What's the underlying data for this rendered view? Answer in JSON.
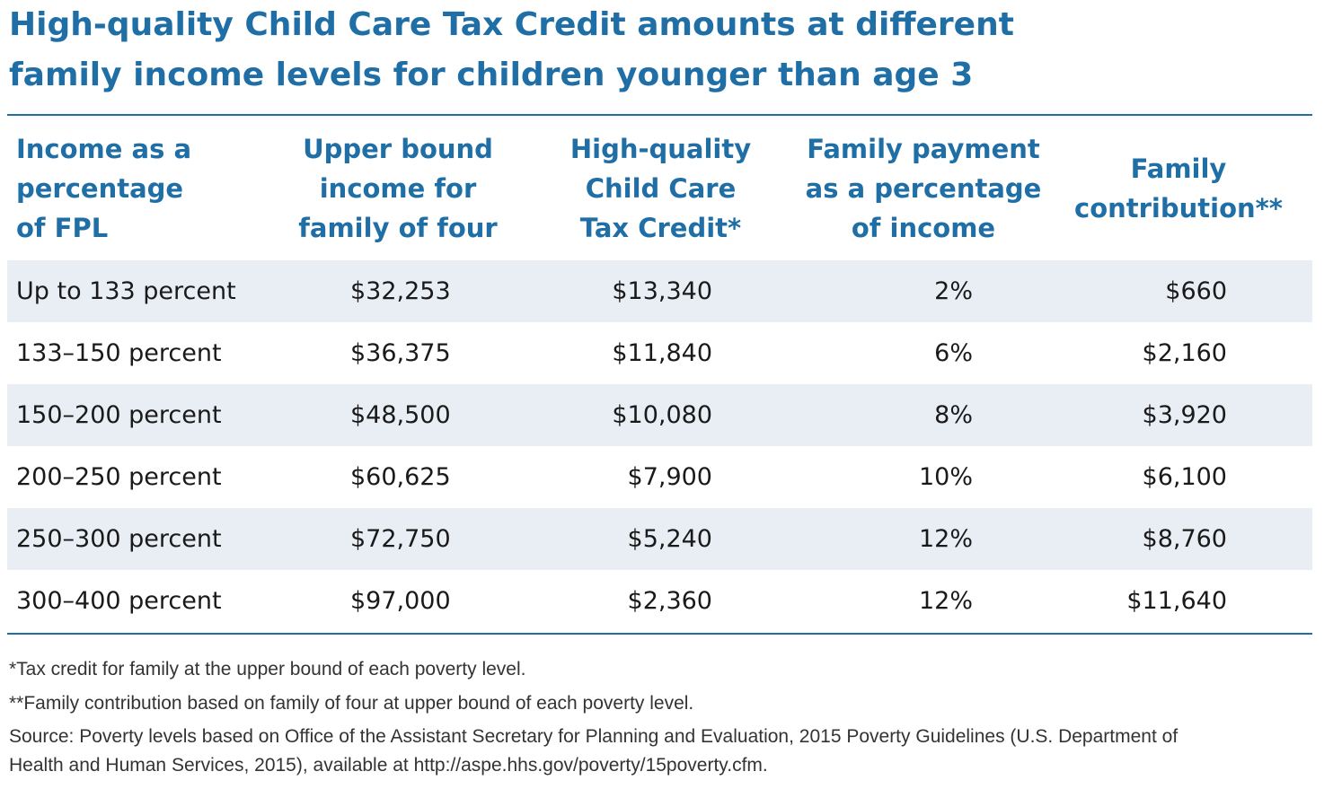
{
  "title": {
    "line1": "High-quality Child Care Tax Credit  amounts at different",
    "line2": "family income levels for children younger than age 3"
  },
  "table": {
    "headers": [
      [
        "Income as a",
        "percentage",
        "of FPL"
      ],
      [
        "Upper bound",
        "income for",
        "family of four"
      ],
      [
        "High-quality",
        "Child Care",
        "Tax Credit*"
      ],
      [
        "Family payment",
        "as a percentage",
        "of income"
      ],
      [
        "Family",
        "contribution**"
      ]
    ],
    "rows": [
      [
        "Up to 133 percent",
        "$32,253",
        "$13,340",
        "2%",
        "$660"
      ],
      [
        "133–150 percent",
        "$36,375",
        "$11,840",
        "6%",
        "$2,160"
      ],
      [
        "150–200 percent",
        "$48,500",
        "$10,080",
        "8%",
        "$3,920"
      ],
      [
        "200–250 percent",
        "$60,625",
        "$7,900",
        "10%",
        "$6,100"
      ],
      [
        "250–300 percent",
        "$72,750",
        "$5,240",
        "12%",
        "$8,760"
      ],
      [
        "300–400 percent",
        "$97,000",
        "$2,360",
        "12%",
        "$11,640"
      ]
    ]
  },
  "notes": {
    "note1": "*Tax credit for family at the upper bound of each poverty level.",
    "note2": "**Family contribution based on family of four at upper bound of each poverty level.",
    "source_line1": "Source: Poverty levels based on Office of the Assistant Secretary for Planning and Evaluation, 2015 Poverty Guidelines (U.S. Department of",
    "source_line2": "Health and Human Services, 2015), available at http://aspe.hhs.gov/poverty/15poverty.cfm."
  },
  "colors": {
    "accent": "#1f6fa6",
    "row_shade": "#e8eef4"
  },
  "chart_data": {
    "type": "table",
    "title": "High-quality Child Care Tax Credit  amounts at different family income levels for children younger than age 3",
    "columns": [
      "Income as a percentage of FPL",
      "Upper bound income for family of four",
      "High-quality Child Care Tax Credit*",
      "Family payment as a percentage of income",
      "Family contribution**"
    ],
    "rows": [
      [
        "Up to 133 percent",
        32253,
        13340,
        2,
        660
      ],
      [
        "133–150 percent",
        36375,
        11840,
        6,
        2160
      ],
      [
        "150–200 percent",
        48500,
        10080,
        8,
        3920
      ],
      [
        "200–250 percent",
        60625,
        7900,
        10,
        6100
      ],
      [
        "250–300 percent",
        72750,
        5240,
        12,
        8760
      ],
      [
        "300–400 percent",
        97000,
        2360,
        12,
        11640
      ]
    ]
  }
}
